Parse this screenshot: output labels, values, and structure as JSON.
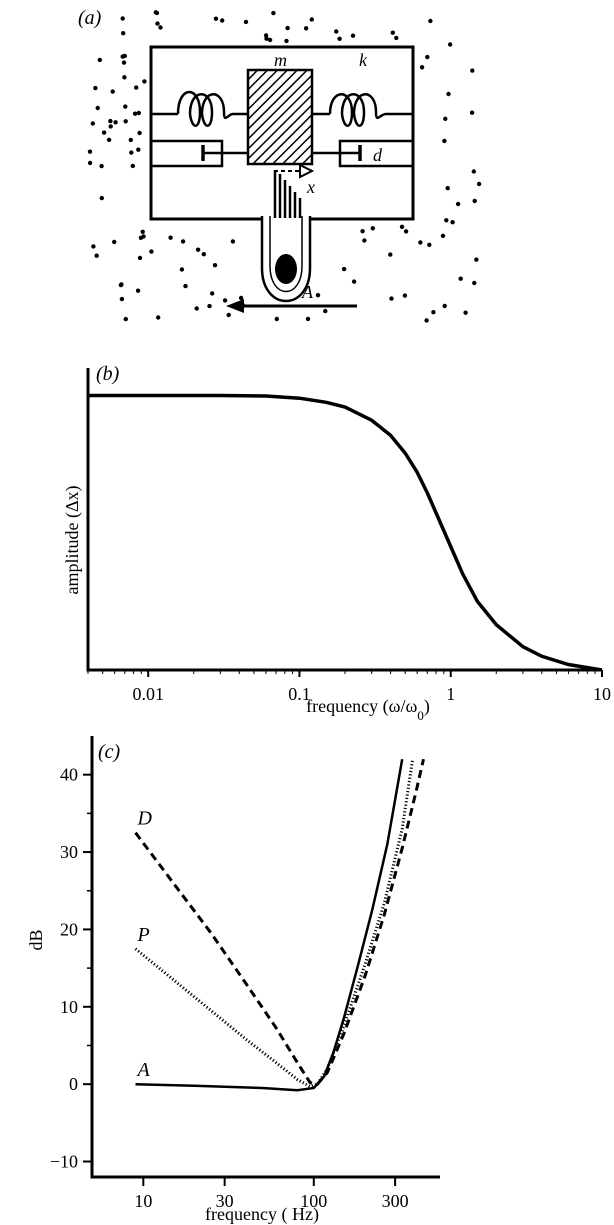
{
  "panel_a": {
    "label": "(a)",
    "mass_label": "m",
    "spring_label": "k",
    "damper_label": "d",
    "displacement_label": "x",
    "acceleration_label": "A"
  },
  "chart_data": [
    {
      "panel": "(b)",
      "type": "line",
      "title": "",
      "xlabel_main": "frequency (ω/ω",
      "xlabel_sub": "0",
      "xlabel_close": ")",
      "ylabel": "amplitude (Δx)",
      "xscale": "log",
      "xlim": [
        0.004,
        10
      ],
      "ylim": [
        0,
        1.1
      ],
      "xticks": [
        0.01,
        0.1,
        1,
        10
      ],
      "xticklabels": [
        "0.01",
        "0.1",
        "1",
        "10"
      ],
      "yticks": [],
      "grid": false,
      "series": [
        {
          "style": "solid",
          "x": [
            0.004,
            0.01,
            0.03,
            0.06,
            0.1,
            0.15,
            0.2,
            0.3,
            0.4,
            0.5,
            0.6,
            0.7,
            0.8,
            1.0,
            1.2,
            1.5,
            2.0,
            3.0,
            4.0,
            6.0,
            10.0
          ],
          "y": [
            1.0,
            1.0,
            1.0,
            0.998,
            0.99,
            0.975,
            0.958,
            0.91,
            0.855,
            0.79,
            0.72,
            0.645,
            0.572,
            0.45,
            0.35,
            0.25,
            0.165,
            0.085,
            0.05,
            0.02,
            0.0
          ]
        }
      ]
    },
    {
      "panel": "(c)",
      "type": "line",
      "title": "",
      "xlabel": "frequency ( Hz)",
      "ylabel": "dB",
      "xscale": "log",
      "xlim": [
        5,
        550
      ],
      "ylim": [
        -12,
        45
      ],
      "xticks": [
        10,
        30,
        100,
        300
      ],
      "xticklabels": [
        "10",
        "30",
        "100",
        "300"
      ],
      "yticks": [
        -10,
        0,
        10,
        20,
        30,
        40
      ],
      "yticklabels": [
        "−10",
        "0",
        "10",
        "20",
        "30",
        "40"
      ],
      "grid": false,
      "series": [
        {
          "name": "A",
          "style": "solid",
          "x": [
            9,
            20,
            50,
            80,
            100,
            115,
            130,
            150,
            180,
            220,
            270,
            330
          ],
          "y": [
            0,
            -0.2,
            -0.5,
            -0.8,
            -0.5,
            1,
            4,
            8.5,
            15,
            22.5,
            31,
            42
          ]
        },
        {
          "name": "P",
          "style": "dotted",
          "x": [
            9,
            15,
            25,
            40,
            60,
            80,
            95,
            105,
            120,
            150,
            200,
            260,
            330,
            380
          ],
          "y": [
            17.5,
            13.5,
            9.5,
            5.8,
            2.8,
            0.6,
            -0.3,
            0,
            2,
            7.5,
            15.5,
            23.5,
            33,
            42
          ]
        },
        {
          "name": "D",
          "style": "dashed",
          "x": [
            9,
            15,
            25,
            40,
            60,
            80,
            95,
            105,
            120,
            150,
            200,
            260,
            330,
            400,
            440
          ],
          "y": [
            32.5,
            26,
            19.5,
            13,
            7.3,
            2.8,
            0.2,
            0,
            1.5,
            6.5,
            14,
            22,
            30.5,
            38,
            42
          ]
        }
      ]
    }
  ]
}
